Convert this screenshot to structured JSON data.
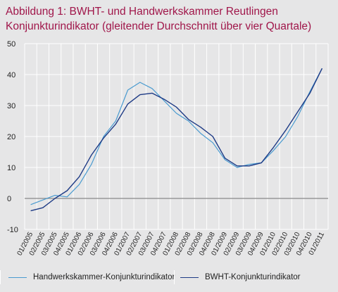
{
  "title_lines": [
    "Abbildung 1: BWHT- und Handwerkskammer  Reutlingen",
    "Konjunkturindikator (gleitender Durchschnitt über vier Quartale)"
  ],
  "colors": {
    "title": "#a0164a",
    "background": "#e6e6e7",
    "zero_line": "#888888",
    "grid": "#ffffff"
  },
  "chart_data": {
    "type": "line",
    "title": "Abbildung 1: BWHT- und Handwerkskammer  Reutlingen Konjunkturindikator (gleitender Durchschnitt über vier Quartale)",
    "xlabel": "",
    "ylabel": "",
    "ylim": [
      -10,
      50
    ],
    "yticks": [
      -10,
      0,
      10,
      20,
      30,
      40,
      50
    ],
    "grid": true,
    "legend_position": "bottom",
    "x": [
      "01/2005",
      "02/2005",
      "03/2005",
      "04/2005",
      "01/2006",
      "02/2006",
      "03/2006",
      "04/2006",
      "01/2007",
      "02/2007",
      "03/2007",
      "04/2007",
      "01/2008",
      "02/2008",
      "03/2008",
      "04/2008",
      "01/2009",
      "02/2009",
      "03/2009",
      "04/2009",
      "01/2010",
      "02/2010",
      "03/2010",
      "04/2010",
      "01/2011"
    ],
    "xtick_labels": [
      "01/2005",
      "02/2005",
      "03/2005",
      "04/2005",
      "01/2006",
      "02/2006",
      "03/2006",
      "04/2006",
      "01/2007",
      "02/2007",
      "03/2007",
      "04/2007",
      "01/2008",
      "02/2008",
      "03/2008",
      "04/2008",
      "01/2009",
      "02/2009",
      "03/2009",
      "04/2009",
      "01/2010",
      "02/2010",
      "03/2010",
      "04/2010",
      "01/2011"
    ],
    "series": [
      {
        "name": "Handwerkskammer-Konjunkturindikator",
        "color": "#4a9bd0",
        "values": [
          -2,
          -0.5,
          1,
          0.5,
          4.5,
          11,
          20,
          25,
          35,
          37.5,
          35.5,
          31.5,
          27.5,
          25,
          21,
          18,
          12.5,
          10,
          11,
          11.5,
          15.5,
          20,
          26.5,
          34.5,
          42
        ]
      },
      {
        "name": "BWHT-Konjunkturindikator",
        "color": "#1d3a85",
        "values": [
          -4,
          -3,
          0,
          2.5,
          7,
          14,
          19.5,
          24,
          30.5,
          33.5,
          34,
          32,
          29.5,
          25.5,
          23,
          20,
          13,
          10.5,
          10.5,
          11.5,
          16.5,
          22,
          28,
          34,
          42
        ]
      }
    ]
  }
}
